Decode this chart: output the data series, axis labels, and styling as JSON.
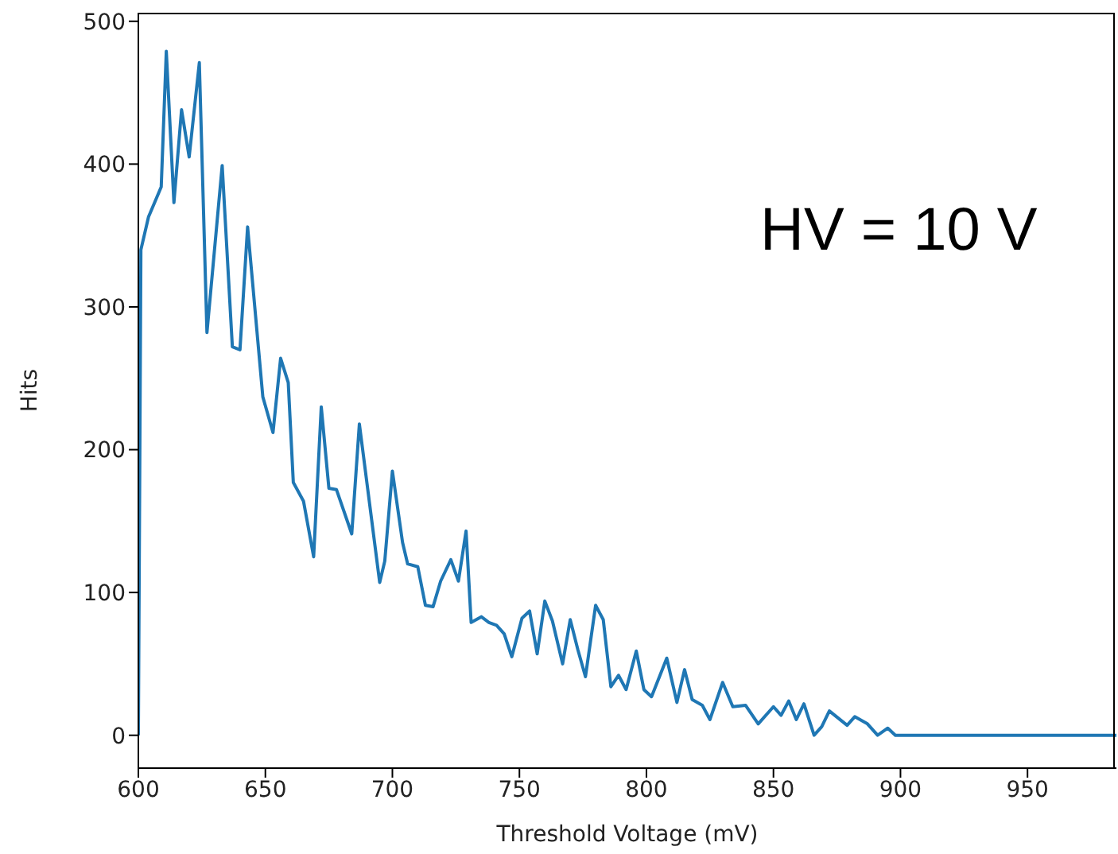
{
  "chart_data": {
    "type": "line",
    "xlabel": "Threshold Voltage (mV)",
    "ylabel": "Hits",
    "annotations": [
      "HV = 10 V"
    ],
    "x": [
      600,
      601,
      604,
      609,
      611,
      614,
      617,
      620,
      624,
      627,
      633,
      637,
      640,
      643,
      649,
      653,
      656,
      659,
      661,
      665,
      669,
      672,
      675,
      678,
      684,
      687,
      695,
      697,
      700,
      704,
      706,
      710,
      713,
      716,
      719,
      723,
      726,
      729,
      731,
      735,
      738,
      741,
      744,
      747,
      751,
      754,
      757,
      760,
      763,
      767,
      770,
      773,
      776,
      780,
      783,
      786,
      789,
      792,
      796,
      799,
      802,
      808,
      812,
      815,
      818,
      822,
      825,
      830,
      834,
      839,
      844,
      850,
      853,
      856,
      859,
      862,
      866,
      869,
      872,
      879,
      882,
      887,
      891,
      895,
      898,
      985
    ],
    "series": [
      {
        "color": "#1f77b4",
        "values": [
          0,
          340,
          363,
          384,
          479,
          373,
          438,
          405,
          471,
          282,
          399,
          272,
          270,
          356,
          237,
          212,
          264,
          247,
          177,
          164,
          125,
          230,
          173,
          172,
          141,
          218,
          107,
          122,
          185,
          135,
          120,
          118,
          91,
          90,
          108,
          123,
          108,
          143,
          79,
          83,
          79,
          77,
          71,
          55,
          82,
          87,
          57,
          94,
          80,
          50,
          81,
          60,
          41,
          91,
          81,
          34,
          42,
          32,
          59,
          32,
          27,
          54,
          23,
          46,
          25,
          21,
          11,
          37,
          20,
          21,
          8,
          20,
          14,
          24,
          11,
          22,
          0,
          6,
          17,
          7,
          13,
          8,
          0,
          5,
          0,
          0
        ]
      }
    ],
    "xlim": [
      600,
      985
    ],
    "ylim": [
      -23,
      506
    ],
    "xticks": [
      600,
      650,
      700,
      750,
      800,
      850,
      900,
      950
    ],
    "yticks": [
      0,
      100,
      200,
      300,
      400,
      500
    ],
    "marker": "none",
    "line_style": "solid"
  }
}
